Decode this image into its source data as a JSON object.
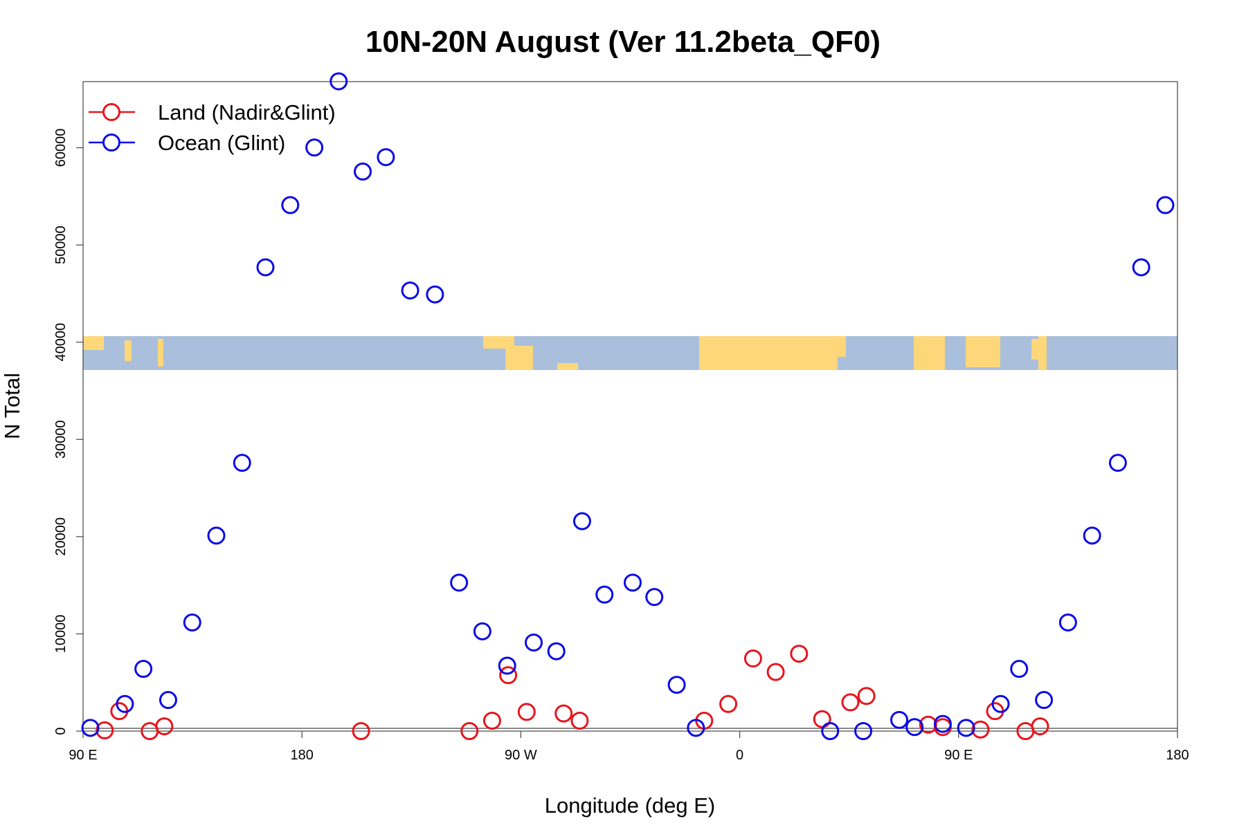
{
  "chart_data": {
    "type": "scatter",
    "title": "10N-20N August (Ver 11.2beta_QF0)",
    "x_label": "Longitude (deg E)",
    "y_label": "N Total",
    "xlim": [
      90,
      540
    ],
    "ylim": [
      0,
      66800
    ],
    "xticks": [
      {
        "value": 90,
        "label": "90 E"
      },
      {
        "value": 180,
        "label": "180"
      },
      {
        "value": 270,
        "label": "90 W"
      },
      {
        "value": 360,
        "label": "0"
      },
      {
        "value": 450,
        "label": "90 E"
      },
      {
        "value": 540,
        "label": "180"
      }
    ],
    "yticks": [
      0,
      10000,
      20000,
      30000,
      40000,
      50000,
      60000
    ],
    "legend": "top-left",
    "series": [
      {
        "name": "Land (Nadir&Glint)",
        "color": "#e8141c",
        "x": [
          98.9,
          104.9,
          117.4,
          123.4,
          204.3,
          248.9,
          258.2,
          264.8,
          272.4,
          287.6,
          294.2,
          345.4,
          355.3,
          365.5,
          374.8,
          384.4,
          393.9,
          405.5,
          412.1,
          437.5,
          443.5,
          459,
          465,
          477.5,
          483.5
        ],
        "values": [
          80,
          2050,
          0,
          490,
          0,
          0,
          1070,
          5750,
          1970,
          1810,
          1070,
          1070,
          2790,
          7470,
          6080,
          7960,
          1230,
          2960,
          3610,
          660,
          410,
          160,
          2050,
          0,
          490
        ]
      },
      {
        "name": "Ocean (Glint)",
        "color": "#0a0ae6",
        "x": [
          93,
          107.2,
          114.8,
          125,
          134.9,
          144.8,
          155.4,
          165,
          175.2,
          185.1,
          195.1,
          205,
          214.5,
          224.5,
          234.7,
          244.6,
          254.2,
          264.4,
          275.3,
          284.6,
          295.2,
          304.4,
          316,
          324.9,
          334.1,
          342,
          397.2,
          410.8,
          425.6,
          431.9,
          443.5,
          453.1,
          467.3,
          474.9,
          485.1,
          495,
          504.9,
          515.5,
          525.1,
          535
        ],
        "values": [
          330,
          2790,
          6400,
          3200,
          11170,
          20110,
          27590,
          47700,
          54100,
          60020,
          66830,
          57550,
          59030,
          45320,
          44910,
          15270,
          10260,
          6730,
          9110,
          8210,
          21590,
          14040,
          15270,
          13790,
          4760,
          330,
          0,
          0,
          1150,
          410,
          740,
          330,
          2790,
          6400,
          3200,
          11170,
          20110,
          27590,
          47700,
          54100
        ]
      }
    ]
  }
}
